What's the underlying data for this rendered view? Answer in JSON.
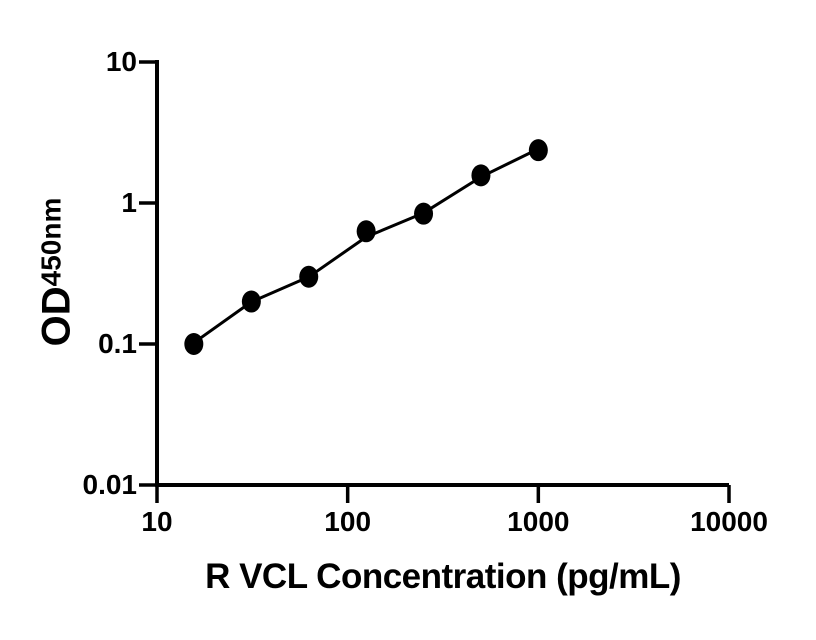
{
  "figure": {
    "background_color": "#ffffff",
    "ink_color": "#000000"
  },
  "chart_data": {
    "type": "scatter",
    "subtype": "elisa-standard-curve",
    "title": "",
    "xlabel": "R VCL Concentration (pg/mL)",
    "ylabel_main": "OD",
    "ylabel_sub": "450nm",
    "x_scale": "log10",
    "y_scale": "log10",
    "xlim": [
      10,
      10000
    ],
    "ylim": [
      0.01,
      10
    ],
    "grid": false,
    "legend": null,
    "x_ticks": [
      {
        "value": 10,
        "label": "10"
      },
      {
        "value": 100,
        "label": "100"
      },
      {
        "value": 1000,
        "label": "1000"
      },
      {
        "value": 10000,
        "label": "10000"
      }
    ],
    "y_ticks": [
      {
        "value": 10,
        "label": "10"
      },
      {
        "value": 1,
        "label": "1"
      },
      {
        "value": 0.1,
        "label": "0.1"
      },
      {
        "value": 0.01,
        "label": "0.01"
      }
    ],
    "points": [
      {
        "x": 15.6,
        "od": 0.1
      },
      {
        "x": 31.25,
        "od": 0.2
      },
      {
        "x": 62.5,
        "od": 0.3
      },
      {
        "x": 125,
        "od": 0.63
      },
      {
        "x": 250,
        "od": 0.84
      },
      {
        "x": 500,
        "od": 1.57
      },
      {
        "x": 1000,
        "od": 2.37
      }
    ],
    "fit_curve": [
      {
        "x": 15.6,
        "od": 0.102
      },
      {
        "x": 31.25,
        "od": 0.199
      },
      {
        "x": 62.5,
        "od": 0.299
      },
      {
        "x": 125,
        "od": 0.574
      },
      {
        "x": 250,
        "od": 0.85
      },
      {
        "x": 500,
        "od": 1.53
      },
      {
        "x": 1000,
        "od": 2.42
      }
    ],
    "marker": {
      "shape": "ellipse",
      "color": "#000000"
    },
    "line_color": "#000000"
  }
}
